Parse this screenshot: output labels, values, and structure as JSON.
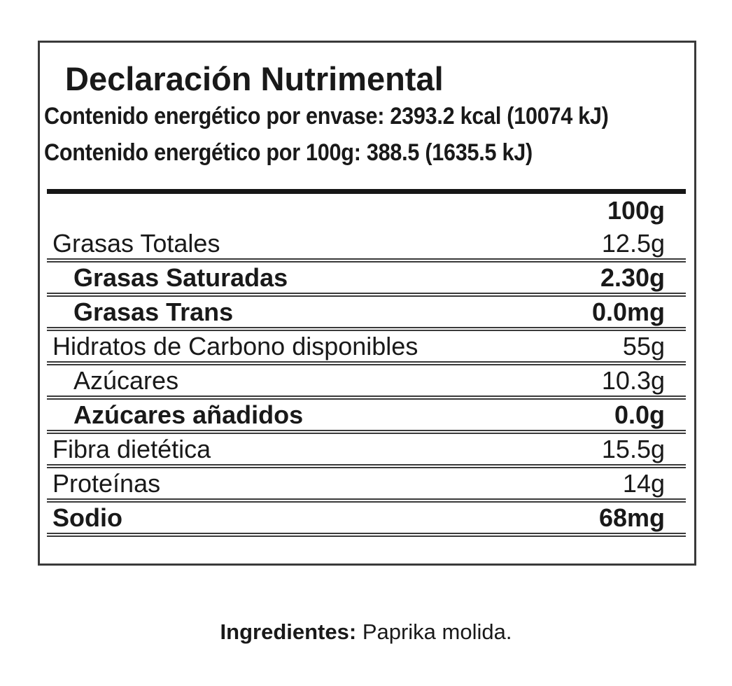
{
  "label": {
    "title": "Declaración Nutrimental",
    "energy_lines": [
      "Contenido energético por envase: 2393.2 kcal (10074 kJ)",
      "Contenido energético por 100g: 388.5 (1635.5 kJ)"
    ],
    "table": {
      "column_header": "100g",
      "rows": [
        {
          "name": "Grasas Totales",
          "value": "12.5g",
          "bold": false,
          "indent": false
        },
        {
          "name": "Grasas Saturadas",
          "value": "2.30g",
          "bold": true,
          "indent": true
        },
        {
          "name": "Grasas Trans",
          "value": "0.0mg",
          "bold": true,
          "indent": true
        },
        {
          "name": "Hidratos de Carbono disponibles",
          "value": "55g",
          "bold": false,
          "indent": false
        },
        {
          "name": "Azúcares",
          "value": "10.3g",
          "bold": false,
          "indent": true
        },
        {
          "name": "Azúcares añadidos",
          "value": "0.0g",
          "bold": true,
          "indent": true
        },
        {
          "name": "Fibra dietética",
          "value": "15.5g",
          "bold": false,
          "indent": false
        },
        {
          "name": "Proteínas",
          "value": "14g",
          "bold": false,
          "indent": false
        },
        {
          "name": "Sodio",
          "value": "68mg",
          "bold": true,
          "indent": false
        }
      ]
    }
  },
  "ingredients": {
    "label": "Ingredientes:",
    "text": "Paprika molida."
  },
  "colors": {
    "text": "#191919",
    "panel_border": "#3a3a3a",
    "row_rule": "#3a3a3a",
    "thick_rule": "#161616",
    "background": "#ffffff"
  }
}
